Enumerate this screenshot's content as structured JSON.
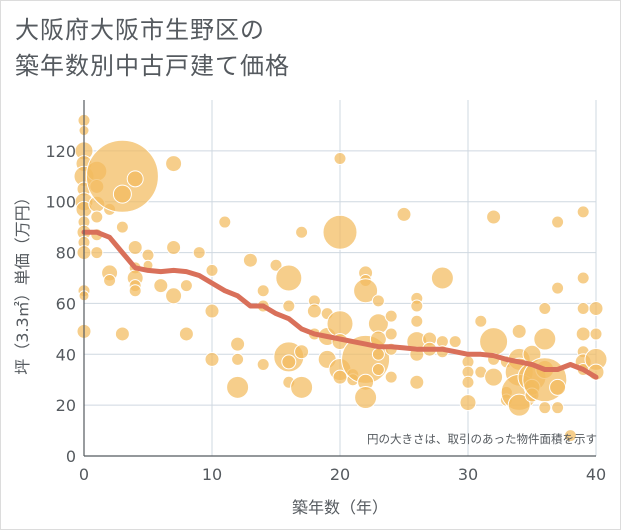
{
  "title_lines": [
    "大阪府大阪市生野区の",
    "築年数別中古戸建て価格"
  ],
  "chart_data": {
    "type": "scatter",
    "title": "大阪府大阪市生野区の築年数別中古戸建て価格",
    "xlabel": "築年数（年）",
    "ylabel": "坪（3.3㎡）単価（万円）",
    "xlim": [
      0,
      40
    ],
    "ylim": [
      0,
      140
    ],
    "xticks": [
      0,
      10,
      20,
      30,
      40
    ],
    "yticks": [
      0,
      20,
      40,
      60,
      80,
      100,
      120
    ],
    "grid": true,
    "annotation": "円の大きさは、取引のあった物件面積を示す",
    "colors": {
      "bubble": "#f2bb5e",
      "trend": "#d9705a"
    },
    "bubble_size_units": "relative (area of property)",
    "points": [
      [
        0,
        132,
        6
      ],
      [
        0,
        128,
        5
      ],
      [
        0,
        120,
        9
      ],
      [
        0,
        115,
        8
      ],
      [
        0,
        110,
        10
      ],
      [
        0,
        105,
        7
      ],
      [
        0,
        100,
        9
      ],
      [
        0,
        97,
        8
      ],
      [
        0,
        92,
        6
      ],
      [
        0,
        88,
        7
      ],
      [
        0,
        84,
        6
      ],
      [
        0,
        80,
        7
      ],
      [
        0,
        65,
        6
      ],
      [
        0,
        63,
        5
      ],
      [
        0,
        49,
        7
      ],
      [
        1,
        112,
        10
      ],
      [
        1,
        106,
        7
      ],
      [
        1,
        99,
        8
      ],
      [
        1,
        94,
        6
      ],
      [
        1,
        87,
        6
      ],
      [
        1,
        80,
        6
      ],
      [
        2,
        97,
        6
      ],
      [
        2,
        72,
        8
      ],
      [
        2,
        69,
        6
      ],
      [
        3,
        110,
        36
      ],
      [
        3,
        103,
        9
      ],
      [
        3,
        90,
        6
      ],
      [
        3,
        48,
        7
      ],
      [
        4,
        109,
        8
      ],
      [
        4,
        82,
        7
      ],
      [
        4,
        74,
        6
      ],
      [
        4,
        70,
        8
      ],
      [
        4,
        67,
        6
      ],
      [
        4,
        65,
        6
      ],
      [
        5,
        79,
        6
      ],
      [
        5,
        75,
        5
      ],
      [
        6,
        67,
        7
      ],
      [
        7,
        115,
        8
      ],
      [
        7,
        82,
        7
      ],
      [
        7,
        63,
        8
      ],
      [
        8,
        67,
        6
      ],
      [
        8,
        48,
        7
      ],
      [
        9,
        80,
        6
      ],
      [
        10,
        73,
        6
      ],
      [
        10,
        57,
        7
      ],
      [
        10,
        38,
        7
      ],
      [
        11,
        92,
        6
      ],
      [
        12,
        44,
        7
      ],
      [
        12,
        38,
        6
      ],
      [
        12,
        27,
        11
      ],
      [
        13,
        77,
        7
      ],
      [
        14,
        65,
        6
      ],
      [
        14,
        59,
        6
      ],
      [
        14,
        36,
        6
      ],
      [
        15,
        75,
        6
      ],
      [
        16,
        70,
        13
      ],
      [
        16,
        59,
        6
      ],
      [
        16,
        39,
        15
      ],
      [
        16,
        37,
        7
      ],
      [
        16,
        29,
        6
      ],
      [
        17,
        88,
        6
      ],
      [
        17,
        41,
        7
      ],
      [
        17,
        27,
        11
      ],
      [
        18,
        61,
        6
      ],
      [
        18,
        57,
        7
      ],
      [
        18,
        48,
        6
      ],
      [
        19,
        56,
        6
      ],
      [
        19,
        47,
        9
      ],
      [
        19,
        38,
        9
      ],
      [
        20,
        117,
        6
      ],
      [
        20,
        88,
        17
      ],
      [
        20,
        52,
        13
      ],
      [
        20,
        45,
        8
      ],
      [
        20,
        34,
        11
      ],
      [
        20,
        31,
        7
      ],
      [
        21,
        32,
        6
      ],
      [
        21,
        30,
        6
      ],
      [
        22,
        72,
        7
      ],
      [
        22,
        69,
        6
      ],
      [
        22,
        65,
        12
      ],
      [
        22,
        38,
        24
      ],
      [
        22,
        29,
        8
      ],
      [
        22,
        23,
        11
      ],
      [
        23,
        61,
        6
      ],
      [
        23,
        52,
        10
      ],
      [
        23,
        46,
        8
      ],
      [
        23,
        40,
        6
      ],
      [
        23,
        34,
        6
      ],
      [
        24,
        55,
        6
      ],
      [
        24,
        48,
        6
      ],
      [
        24,
        42,
        6
      ],
      [
        24,
        31,
        6
      ],
      [
        25,
        95,
        7
      ],
      [
        26,
        62,
        6
      ],
      [
        26,
        59,
        6
      ],
      [
        26,
        53,
        6
      ],
      [
        26,
        45,
        10
      ],
      [
        26,
        40,
        7
      ],
      [
        26,
        29,
        7
      ],
      [
        27,
        46,
        7
      ],
      [
        27,
        42,
        7
      ],
      [
        28,
        70,
        11
      ],
      [
        28,
        45,
        6
      ],
      [
        28,
        41,
        6
      ],
      [
        29,
        45,
        6
      ],
      [
        30,
        37,
        6
      ],
      [
        30,
        33,
        6
      ],
      [
        30,
        29,
        6
      ],
      [
        30,
        21,
        8
      ],
      [
        31,
        53,
        6
      ],
      [
        31,
        33,
        6
      ],
      [
        32,
        94,
        7
      ],
      [
        32,
        45,
        14
      ],
      [
        32,
        38,
        6
      ],
      [
        32,
        31,
        9
      ],
      [
        33,
        37,
        6
      ],
      [
        33,
        25,
        6
      ],
      [
        33,
        22,
        6
      ],
      [
        34,
        49,
        7
      ],
      [
        34,
        38,
        11
      ],
      [
        34,
        33,
        14
      ],
      [
        34,
        25,
        18
      ],
      [
        34,
        20,
        11
      ],
      [
        35,
        40,
        9
      ],
      [
        35,
        31,
        14
      ],
      [
        35,
        27,
        8
      ],
      [
        35,
        24,
        7
      ],
      [
        36,
        58,
        6
      ],
      [
        36,
        46,
        11
      ],
      [
        36,
        34,
        9
      ],
      [
        36,
        30,
        22
      ],
      [
        36,
        19,
        6
      ],
      [
        37,
        92,
        6
      ],
      [
        37,
        66,
        6
      ],
      [
        37,
        27,
        8
      ],
      [
        37,
        19,
        6
      ],
      [
        38,
        8,
        6
      ],
      [
        39,
        96,
        6
      ],
      [
        39,
        70,
        6
      ],
      [
        39,
        58,
        6
      ],
      [
        39,
        48,
        7
      ],
      [
        39,
        41,
        6
      ],
      [
        39,
        37,
        8
      ],
      [
        39,
        34,
        6
      ],
      [
        40,
        58,
        7
      ],
      [
        40,
        48,
        6
      ],
      [
        40,
        38,
        11
      ],
      [
        40,
        33,
        8
      ]
    ],
    "trend": [
      [
        0,
        88
      ],
      [
        1,
        88
      ],
      [
        2,
        86
      ],
      [
        3,
        80
      ],
      [
        4,
        74
      ],
      [
        5,
        73
      ],
      [
        6,
        72.5
      ],
      [
        7,
        73
      ],
      [
        8,
        72.5
      ],
      [
        9,
        71
      ],
      [
        10,
        68
      ],
      [
        11,
        65
      ],
      [
        12,
        63
      ],
      [
        13,
        59
      ],
      [
        14,
        59
      ],
      [
        15,
        56
      ],
      [
        16,
        54
      ],
      [
        17,
        50
      ],
      [
        18,
        48
      ],
      [
        19,
        47
      ],
      [
        20,
        46
      ],
      [
        21,
        45
      ],
      [
        22,
        44
      ],
      [
        23,
        43
      ],
      [
        24,
        43
      ],
      [
        25,
        42.5
      ],
      [
        26,
        42
      ],
      [
        27,
        42
      ],
      [
        28,
        42
      ],
      [
        29,
        41
      ],
      [
        30,
        40
      ],
      [
        31,
        40
      ],
      [
        32,
        39.5
      ],
      [
        33,
        38
      ],
      [
        34,
        37
      ],
      [
        35,
        36
      ],
      [
        36,
        34
      ],
      [
        37,
        34
      ],
      [
        38,
        36
      ],
      [
        39,
        34
      ],
      [
        40,
        31
      ]
    ]
  }
}
